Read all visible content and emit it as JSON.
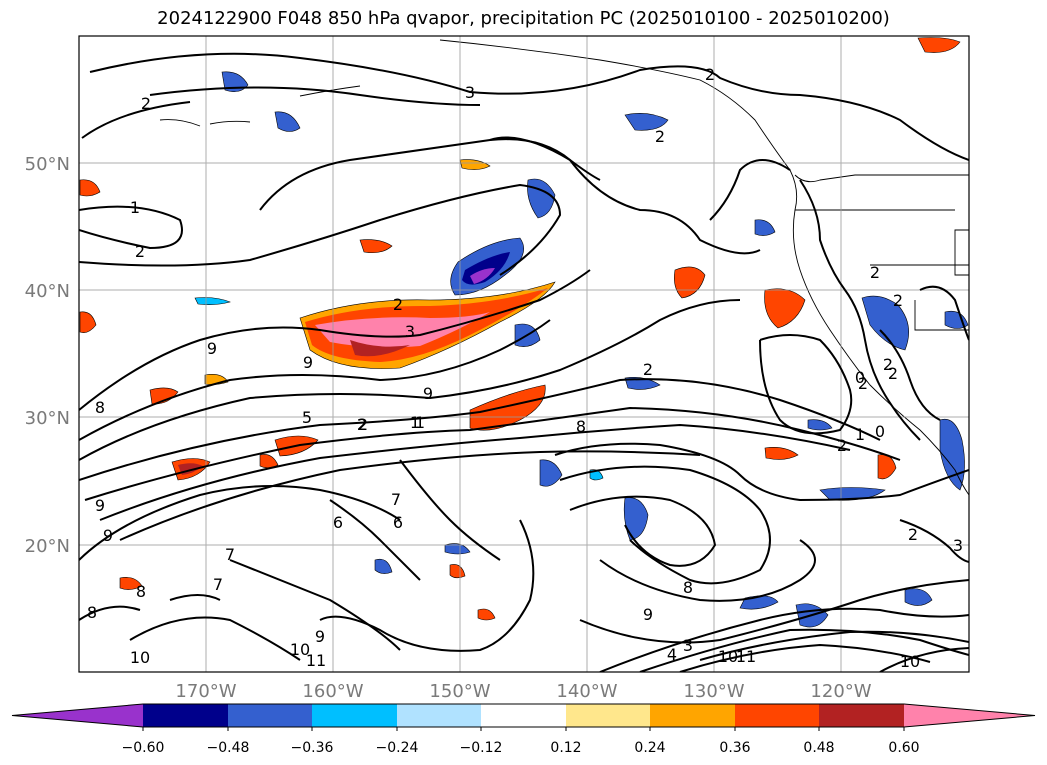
{
  "title": "2024122900 F048 850 hPa qvapor, precipitation PC (2025010100 - 2025010200)",
  "map": {
    "lat_labels": [
      "50°N",
      "40°N",
      "30°N",
      "20°N"
    ],
    "lon_labels": [
      "170°W",
      "160°W",
      "150°W",
      "140°W",
      "130°W",
      "120°W"
    ],
    "contour_labels": [
      "3",
      "2",
      "1",
      "2",
      "3",
      "2",
      "2",
      "2",
      "9",
      "9",
      "8",
      "9",
      "2",
      "1",
      "5",
      "2",
      "1",
      "8",
      "2",
      "1",
      "0",
      "2",
      "9",
      "7",
      "6",
      "6",
      "7",
      "9",
      "8",
      "8",
      "8",
      "7",
      "10",
      "10",
      "11",
      "9",
      "9",
      "3",
      "4",
      "10",
      "11",
      "10",
      "2",
      "3",
      "2",
      "2",
      "2",
      "0",
      "2",
      "2"
    ]
  },
  "colorbar": {
    "tick_labels": [
      "−0.60",
      "−0.48",
      "−0.36",
      "−0.24",
      "−0.12",
      "0.12",
      "0.24",
      "0.36",
      "0.48",
      "0.60"
    ],
    "colors": [
      "#9932cc",
      "#00008b",
      "#3460cf",
      "#00bfff",
      "#b0e2ff",
      "#ffffff",
      "#ffe78c",
      "#ffa500",
      "#ff4500",
      "#b22222",
      "#ff82ab"
    ]
  }
}
